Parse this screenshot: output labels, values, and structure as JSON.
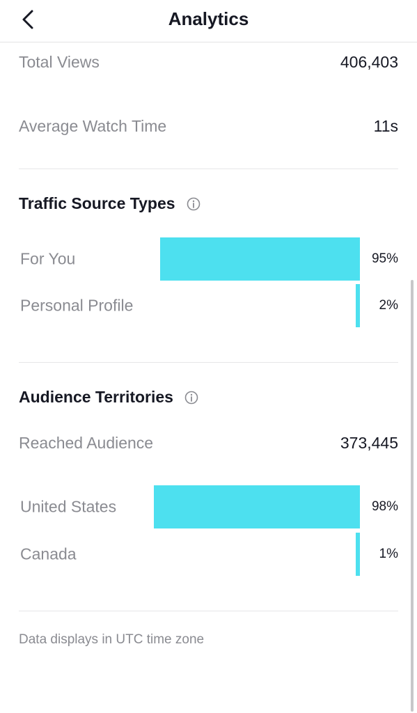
{
  "header": {
    "title": "Analytics"
  },
  "stats": [
    {
      "label": "Total Views",
      "value": "406,403"
    },
    {
      "label": "Average Watch Time",
      "value": "11s"
    }
  ],
  "traffic": {
    "title": "Traffic Source Types",
    "items": [
      {
        "label": "For You",
        "percent": 95,
        "display": "95%"
      },
      {
        "label": "Personal Profile",
        "percent": 2,
        "display": "2%"
      }
    ]
  },
  "audience": {
    "title": "Audience Territories",
    "reached_label": "Reached Audience",
    "reached_value": "373,445",
    "items": [
      {
        "label": "United States",
        "percent": 98,
        "display": "98%"
      },
      {
        "label": "Canada",
        "percent": 1,
        "display": "1%"
      }
    ]
  },
  "footnote": "Data displays in UTC time zone",
  "colors": {
    "bar": "#4de0ef",
    "label": "#8a8b91",
    "text": "#161823"
  }
}
